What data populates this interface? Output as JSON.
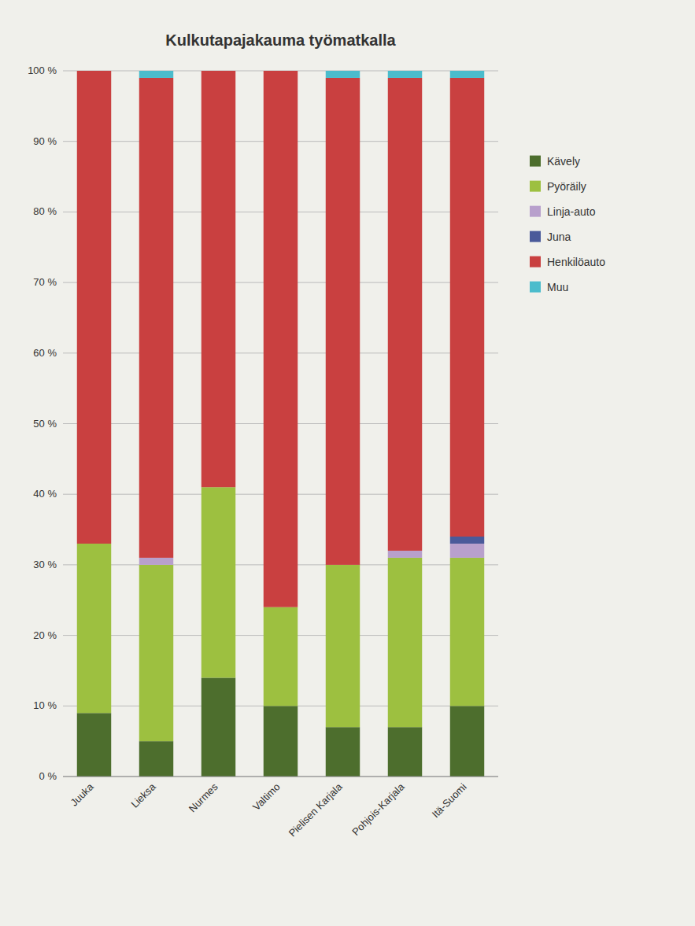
{
  "chart_data": {
    "type": "bar",
    "stacked": true,
    "title": "Kulkutapajakauma työmatkalla",
    "categories": [
      "Juuka",
      "Lieksa",
      "Nurmes",
      "Valtimo",
      "Pielisen Karjala",
      "Pohjois-Karjala",
      "Itä-Suomi"
    ],
    "series": [
      {
        "name": "Kävely",
        "color": "#4d6e2d",
        "values": [
          9,
          5,
          14,
          10,
          7,
          7,
          10
        ]
      },
      {
        "name": "Pyöräily",
        "color": "#9dc040",
        "values": [
          24,
          25,
          27,
          14,
          23,
          24,
          21
        ]
      },
      {
        "name": "Linja-auto",
        "color": "#b8a0cc",
        "values": [
          0,
          1,
          0,
          0,
          0,
          1,
          2
        ]
      },
      {
        "name": "Juna",
        "color": "#4a5a9a",
        "values": [
          0,
          0,
          0,
          0,
          0,
          0,
          1
        ]
      },
      {
        "name": "Henkilöauto",
        "color": "#c94040",
        "values": [
          67,
          68,
          59,
          76,
          69,
          67,
          65
        ]
      },
      {
        "name": "Muu",
        "color": "#4bbccc",
        "values": [
          0,
          1,
          0,
          0,
          1,
          1,
          1
        ]
      }
    ],
    "ylim": [
      0,
      100
    ],
    "yticks": [
      {
        "value": 0,
        "label": "0 %"
      },
      {
        "value": 10,
        "label": "10 %"
      },
      {
        "value": 20,
        "label": "20 %"
      },
      {
        "value": 30,
        "label": "30 %"
      },
      {
        "value": 40,
        "label": "40 %"
      },
      {
        "value": 50,
        "label": "50 %"
      },
      {
        "value": 60,
        "label": "60 %"
      },
      {
        "value": 70,
        "label": "70 %"
      },
      {
        "value": 80,
        "label": "80 %"
      },
      {
        "value": 90,
        "label": "90 %"
      },
      {
        "value": 100,
        "label": "100 %"
      }
    ],
    "grid": true,
    "legend": "right"
  }
}
